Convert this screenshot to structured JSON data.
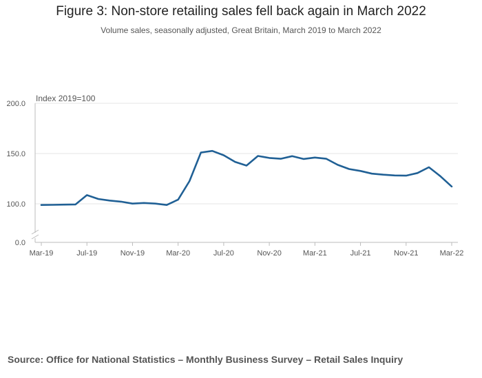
{
  "title": "Figure 3: Non-store retailing sales fell back again in March 2022",
  "subtitle": "Volume sales, seasonally adjusted, Great Britain, March 2019 to March 2022",
  "source": "Source: Office for National Statistics – Monthly Business Survey – Retail Sales Inquiry",
  "colors": {
    "line": "#206095",
    "grid": "#e6e6e6",
    "axis": "#bbbbbb",
    "text": "#555555"
  },
  "chart_data": {
    "type": "line",
    "title": "Figure 3: Non-store retailing sales fell back again in March 2022",
    "ylabel": "Index 2019=100",
    "xlabel": "",
    "ylim": [
      0,
      200
    ],
    "yticks": [
      0.0,
      100.0,
      150.0,
      200.0
    ],
    "ytick_labels": [
      "0.0",
      "100.0",
      "150.0",
      "200.0"
    ],
    "axis_break": "between 0 and 100",
    "grid": true,
    "x": [
      "Mar-19",
      "Apr-19",
      "May-19",
      "Jun-19",
      "Jul-19",
      "Aug-19",
      "Sep-19",
      "Oct-19",
      "Nov-19",
      "Dec-19",
      "Jan-20",
      "Feb-20",
      "Mar-20",
      "Apr-20",
      "May-20",
      "Jun-20",
      "Jul-20",
      "Aug-20",
      "Sep-20",
      "Oct-20",
      "Nov-20",
      "Dec-20",
      "Jan-21",
      "Feb-21",
      "Mar-21",
      "Apr-21",
      "May-21",
      "Jun-21",
      "Jul-21",
      "Aug-21",
      "Sep-21",
      "Oct-21",
      "Nov-21",
      "Dec-21",
      "Jan-22",
      "Feb-22",
      "Mar-22"
    ],
    "xtick_labels": [
      "Mar-19",
      "Jul-19",
      "Nov-19",
      "Mar-20",
      "Jul-20",
      "Nov-20",
      "Mar-21",
      "Jul-21",
      "Nov-21",
      "Mar-22"
    ],
    "series": [
      {
        "name": "Non-store retailing",
        "values": [
          97.0,
          97.4,
          97.9,
          98.4,
          108.6,
          104.8,
          103.2,
          102.1,
          100.2,
          100.8,
          100.2,
          97.0,
          104.2,
          122.6,
          151.0,
          152.6,
          148.3,
          141.7,
          138.0,
          147.6,
          145.6,
          144.8,
          147.4,
          144.6,
          146.0,
          144.8,
          138.8,
          134.6,
          132.7,
          130.0,
          129.0,
          128.2,
          128.0,
          130.6,
          136.4,
          127.5,
          117.2
        ]
      }
    ]
  }
}
